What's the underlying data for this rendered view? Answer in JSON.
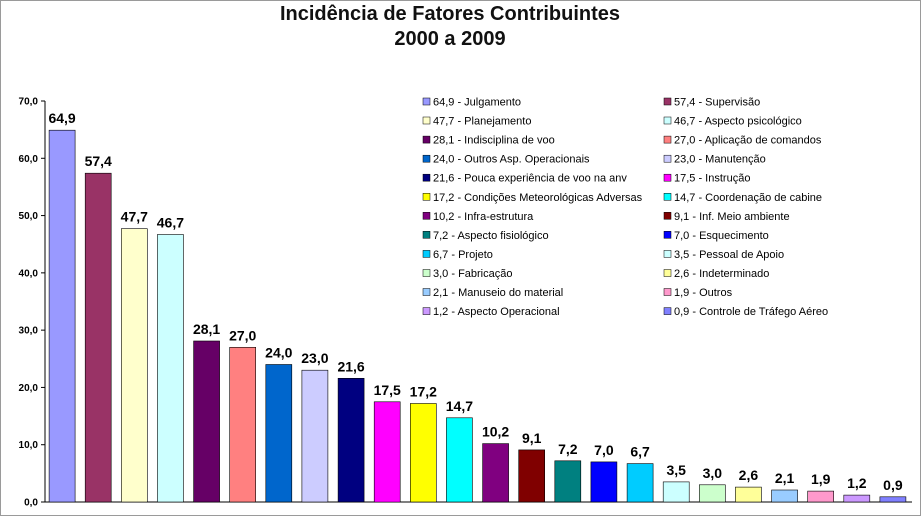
{
  "chart_data": {
    "type": "bar",
    "title": "Incidência de Fatores Contribuintes",
    "subtitle": "2000 a 2009",
    "ylim": [
      0,
      70
    ],
    "yticks": [
      "0,0",
      "10,0",
      "20,0",
      "30,0",
      "40,0",
      "50,0",
      "60,0",
      "70,0"
    ],
    "grid": false,
    "legend_position": "top-right",
    "categories": [
      "Julgamento",
      "Supervisão",
      "Planejamento",
      "Aspecto psicológico",
      "Indisciplina de voo",
      "Aplicação de comandos",
      "Outros Asp. Operacionais",
      "Manutenção",
      "Pouca experiência de voo na anv",
      "Instrução",
      "Condições Meteorológicas Adversas",
      "Coordenação de cabine",
      "Infra-estrutura",
      "Inf. Meio ambiente",
      "Aspecto fisiológico",
      "Esquecimento",
      "Projeto",
      "Pessoal de Apoio",
      "Fabricação",
      "Indeterminado",
      "Manuseio do material",
      "Outros",
      "Aspecto Operacional",
      "Controle de Tráfego Aéreo"
    ],
    "values": [
      64.9,
      57.4,
      47.7,
      46.7,
      28.1,
      27.0,
      24.0,
      23.0,
      21.6,
      17.5,
      17.2,
      14.7,
      10.2,
      9.1,
      7.2,
      7.0,
      6.7,
      3.5,
      3.0,
      2.6,
      2.1,
      1.9,
      1.2,
      0.9
    ],
    "value_labels": [
      "64,9",
      "57,4",
      "47,7",
      "46,7",
      "28,1",
      "27,0",
      "24,0",
      "23,0",
      "21,6",
      "17,5",
      "17,2",
      "14,7",
      "10,2",
      "9,1",
      "7,2",
      "7,0",
      "6,7",
      "3,5",
      "3,0",
      "2,6",
      "2,1",
      "1,9",
      "1,2",
      "0,9"
    ],
    "legend_labels": [
      "64,9 - Julgamento",
      "57,4 - Supervisão",
      "47,7 - Planejamento",
      "46,7 - Aspecto psicológico",
      "28,1 - Indisciplina de voo",
      "27,0 - Aplicação de comandos",
      "24,0 - Outros Asp. Operacionais",
      "23,0 - Manutenção",
      "21,6 - Pouca experiência de voo na anv",
      "17,5 - Instrução",
      "17,2 - Condições Meteorológicas Adversas",
      "14,7 - Coordenação de cabine",
      "10,2 - Infra-estrutura",
      "9,1 - Inf. Meio ambiente",
      "7,2 - Aspecto fisiológico",
      "7,0 - Esquecimento",
      "6,7 - Projeto",
      "3,5 - Pessoal de Apoio",
      "3,0 - Fabricação",
      "2,6 - Indeterminado",
      "2,1 - Manuseio do material",
      "1,9 - Outros",
      "1,2 - Aspecto Operacional",
      "0,9 - Controle de Tráfego Aéreo"
    ],
    "colors": [
      "#9999ff",
      "#993366",
      "#ffffcc",
      "#ccffff",
      "#660066",
      "#ff8080",
      "#0066cc",
      "#ccccff",
      "#000080",
      "#ff00ff",
      "#ffff00",
      "#00ffff",
      "#800080",
      "#800000",
      "#008080",
      "#0000ff",
      "#00ccff",
      "#ccffff",
      "#ccffcc",
      "#ffff99",
      "#99ccff",
      "#ff99cc",
      "#cc99ff",
      "#8080ff"
    ]
  }
}
